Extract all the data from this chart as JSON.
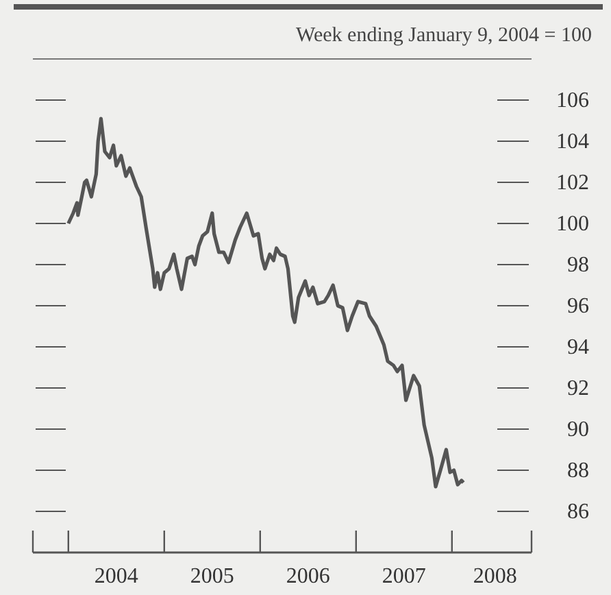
{
  "chart_data": {
    "type": "line",
    "title": "Week ending January 9, 2004 = 100",
    "series": [
      {
        "color": "#555555",
        "x": [
          2004.0,
          2004.05,
          2004.09,
          2004.1,
          2004.14,
          2004.17,
          2004.19,
          2004.24,
          2004.29,
          2004.31,
          2004.34,
          2004.38,
          2004.43,
          2004.47,
          2004.5,
          2004.55,
          2004.6,
          2004.64,
          2004.71,
          2004.76,
          2004.81,
          2004.88,
          2004.9,
          2004.93,
          2004.96,
          2005.0,
          2005.05,
          2005.1,
          2005.13,
          2005.18,
          2005.24,
          2005.29,
          2005.32,
          2005.36,
          2005.4,
          2005.45,
          2005.5,
          2005.52,
          2005.57,
          2005.62,
          2005.67,
          2005.74,
          2005.79,
          2005.86,
          2005.93,
          2005.98,
          2006.02,
          2006.05,
          2006.1,
          2006.14,
          2006.17,
          2006.21,
          2006.26,
          2006.29,
          2006.34,
          2006.36,
          2006.4,
          2006.47,
          2006.51,
          2006.55,
          2006.6,
          2006.67,
          2006.71,
          2006.76,
          2006.81,
          2006.86,
          2006.91,
          2006.96,
          2007.02,
          2007.1,
          2007.14,
          2007.21,
          2007.29,
          2007.33,
          2007.39,
          2007.43,
          2007.48,
          2007.52,
          2007.6,
          2007.66,
          2007.71,
          2007.79,
          2007.83,
          2007.88,
          2007.94,
          2007.98,
          2008.02,
          2008.06,
          2008.1,
          2008.12
        ],
        "values": [
          100.0,
          100.5,
          101.0,
          100.4,
          101.3,
          102.0,
          102.1,
          101.3,
          102.4,
          104.0,
          105.1,
          103.5,
          103.2,
          103.8,
          102.8,
          103.3,
          102.3,
          102.7,
          101.8,
          101.3,
          99.8,
          97.8,
          96.9,
          97.6,
          96.8,
          97.6,
          97.8,
          98.5,
          97.8,
          96.8,
          98.3,
          98.4,
          98.0,
          98.9,
          99.4,
          99.6,
          100.5,
          99.5,
          98.6,
          98.6,
          98.1,
          99.2,
          99.8,
          100.5,
          99.4,
          99.5,
          98.3,
          97.8,
          98.5,
          98.2,
          98.8,
          98.5,
          98.4,
          97.8,
          95.5,
          95.2,
          96.4,
          97.2,
          96.5,
          96.9,
          96.1,
          96.2,
          96.5,
          97.0,
          96.0,
          95.9,
          94.8,
          95.5,
          96.2,
          96.1,
          95.5,
          95.0,
          94.1,
          93.3,
          93.1,
          92.8,
          93.1,
          91.4,
          92.6,
          92.1,
          90.2,
          88.6,
          87.2,
          88.0,
          89.0,
          87.9,
          88.0,
          87.3,
          87.5,
          87.4
        ]
      }
    ],
    "xlim": [
      2003.63,
      2008.83
    ],
    "xticks": [
      {
        "value": 2004,
        "label": null
      },
      {
        "value": 2004.5,
        "label": "2004"
      },
      {
        "value": 2005,
        "label": null
      },
      {
        "value": 2005.5,
        "label": "2005"
      },
      {
        "value": 2006,
        "label": null
      },
      {
        "value": 2006.5,
        "label": "2006"
      },
      {
        "value": 2007,
        "label": null
      },
      {
        "value": 2007.5,
        "label": "2007"
      },
      {
        "value": 2008,
        "label": null
      },
      {
        "value": 2008.45,
        "label": "2008"
      }
    ],
    "ylim": [
      84,
      108
    ],
    "yticks": [
      86,
      88,
      90,
      92,
      94,
      96,
      98,
      100,
      102,
      104,
      106
    ],
    "marker": "none",
    "line_style": "solid"
  }
}
